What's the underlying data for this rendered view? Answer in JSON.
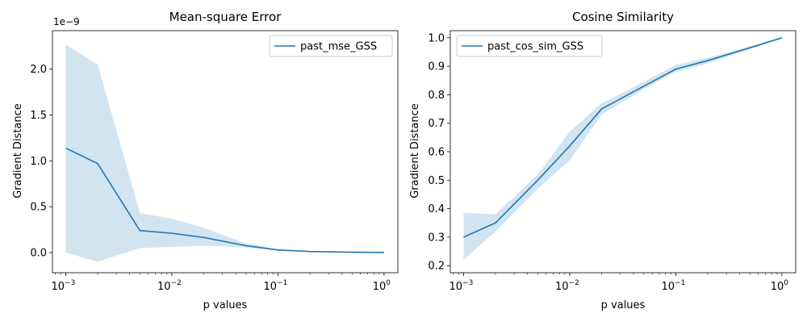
{
  "chart_data": [
    {
      "type": "line",
      "title": "Mean-square Error",
      "xlabel": "p values",
      "ylabel": "Gradient Distance",
      "xscale": "log",
      "xlim": [
        0.00075,
        1.35
      ],
      "ylim": [
        -2.2e-10,
        2.42e-09
      ],
      "offset_text": "1e−9",
      "x_ticks": [
        {
          "value": 0.001,
          "mantissa": "10",
          "exp": "−3"
        },
        {
          "value": 0.01,
          "mantissa": "10",
          "exp": "−2"
        },
        {
          "value": 0.1,
          "mantissa": "10",
          "exp": "−1"
        },
        {
          "value": 1,
          "mantissa": "10",
          "exp": "0"
        }
      ],
      "y_ticks": [
        {
          "value": 0,
          "label": "0.0"
        },
        {
          "value": 5e-10,
          "label": "0.5"
        },
        {
          "value": 1e-09,
          "label": "1.0"
        },
        {
          "value": 1.5e-09,
          "label": "1.5"
        },
        {
          "value": 2e-09,
          "label": "2.0"
        }
      ],
      "legend": {
        "position": "upper right"
      },
      "series": [
        {
          "name": "past_mse_GSS",
          "color": "#1f77b4",
          "band_color": "#1f77b4",
          "x": [
            0.001,
            0.002,
            0.005,
            0.01,
            0.02,
            0.05,
            0.1,
            0.2,
            0.5,
            1.0
          ],
          "values": [
            1.14e-09,
            9.7e-10,
            2.4e-10,
            2.1e-10,
            1.65e-10,
            7.5e-11,
            2.8e-11,
            1.2e-11,
            4e-12,
            2e-12
          ],
          "lower": [
            0.0,
            -1e-10,
            5e-11,
            6e-11,
            7.5e-11,
            5.5e-11,
            2.3e-11,
            9e-12,
            3e-12,
            1e-12
          ],
          "upper": [
            2.27e-09,
            2.05e-09,
            4.3e-10,
            3.7e-10,
            2.7e-10,
            1e-10,
            3.5e-11,
            1.5e-11,
            5e-12,
            3e-12
          ]
        }
      ]
    },
    {
      "type": "line",
      "title": "Cosine Similarity",
      "xlabel": "p values",
      "ylabel": "Gradient Distance",
      "xscale": "log",
      "xlim": [
        0.00075,
        1.35
      ],
      "ylim": [
        0.175,
        1.025
      ],
      "x_ticks": [
        {
          "value": 0.001,
          "mantissa": "10",
          "exp": "−3"
        },
        {
          "value": 0.01,
          "mantissa": "10",
          "exp": "−2"
        },
        {
          "value": 0.1,
          "mantissa": "10",
          "exp": "−1"
        },
        {
          "value": 1,
          "mantissa": "10",
          "exp": "0"
        }
      ],
      "y_ticks": [
        {
          "value": 0.2,
          "label": "0.2"
        },
        {
          "value": 0.3,
          "label": "0.3"
        },
        {
          "value": 0.4,
          "label": "0.4"
        },
        {
          "value": 0.5,
          "label": "0.5"
        },
        {
          "value": 0.6,
          "label": "0.6"
        },
        {
          "value": 0.7,
          "label": "0.7"
        },
        {
          "value": 0.8,
          "label": "0.8"
        },
        {
          "value": 0.9,
          "label": "0.9"
        },
        {
          "value": 1.0,
          "label": "1.0"
        }
      ],
      "legend": {
        "position": "upper left"
      },
      "series": [
        {
          "name": "past_cos_sim_GSS",
          "color": "#1f77b4",
          "band_color": "#1f77b4",
          "x": [
            0.001,
            0.002,
            0.005,
            0.01,
            0.02,
            0.05,
            0.1,
            0.2,
            0.5,
            1.0
          ],
          "values": [
            0.3,
            0.35,
            0.5,
            0.62,
            0.75,
            0.83,
            0.89,
            0.92,
            0.965,
            1.0
          ],
          "lower": [
            0.22,
            0.32,
            0.47,
            0.57,
            0.73,
            0.82,
            0.88,
            0.91,
            0.96,
            1.0
          ],
          "upper": [
            0.385,
            0.38,
            0.52,
            0.67,
            0.77,
            0.845,
            0.905,
            0.93,
            0.97,
            1.0
          ]
        }
      ]
    }
  ]
}
